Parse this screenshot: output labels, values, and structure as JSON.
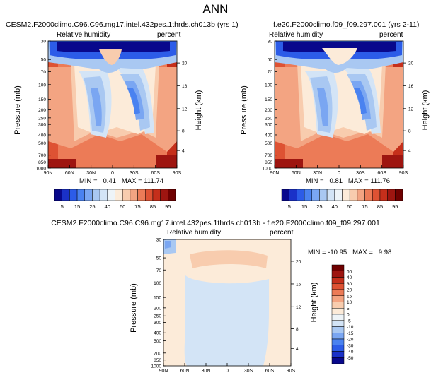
{
  "page_title": "ANN",
  "cmap_colors": [
    "#08088c",
    "#1a31c8",
    "#2c5ce8",
    "#4a82f0",
    "#7aa6f2",
    "#a9c8f2",
    "#d3e4f6",
    "#eef4f8",
    "#fcebd9",
    "#f8ccae",
    "#f3a482",
    "#ec7b57",
    "#de5233",
    "#c52f1b",
    "#9e1510",
    "#6f0000"
  ],
  "top_colorbar_labels": [
    "5",
    "15",
    "25",
    "40",
    "60",
    "75",
    "85",
    "95"
  ],
  "diff_colorbar_labels": [
    "50",
    "40",
    "30",
    "20",
    "15",
    "10",
    "5",
    "0",
    "-5",
    "-10",
    "-15",
    "-20",
    "-30",
    "-40",
    "-50"
  ],
  "chart_data": [
    {
      "type": "heatmap",
      "title": "CESM2.F2000climo.C96.C96.mg17.intel.432pes.1thrds.ch013b (yrs 1)",
      "subtitle_left": "Relative humidity",
      "subtitle_right": "percent",
      "ylabel": "Pressure (mb)",
      "ylabel_right": "Height (km)",
      "x_ticks": [
        "90N",
        "60N",
        "30N",
        "0",
        "30S",
        "60S",
        "90S"
      ],
      "y_ticks": [
        "30",
        "50",
        "70",
        "100",
        "150",
        "200",
        "250",
        "300",
        "400",
        "500",
        "700",
        "850",
        "1000"
      ],
      "y2_ticks": [
        "20",
        "16",
        "12",
        "8",
        "4"
      ],
      "stats": "MIN =   0.41   MAX = 111.74",
      "min": 0.41,
      "max": 111.74,
      "colorbar_ticks": [
        5,
        15,
        25,
        40,
        60,
        75,
        85,
        95
      ]
    },
    {
      "type": "heatmap",
      "title": "f.e20.F2000climo.f09_f09.297.001 (yrs 2-11)",
      "subtitle_left": "Relative humidity",
      "subtitle_right": "percent",
      "ylabel": "Pressure (mb)",
      "ylabel_right": "Height (km)",
      "x_ticks": [
        "90N",
        "60N",
        "30N",
        "0",
        "30S",
        "60S",
        "90S"
      ],
      "y_ticks": [
        "30",
        "50",
        "70",
        "100",
        "150",
        "200",
        "250",
        "300",
        "400",
        "500",
        "700",
        "850",
        "1000"
      ],
      "y2_ticks": [
        "20",
        "16",
        "12",
        "8",
        "4"
      ],
      "stats": "MIN =   0.81   MAX = 111.76",
      "min": 0.81,
      "max": 111.76,
      "colorbar_ticks": [
        5,
        15,
        25,
        40,
        60,
        75,
        85,
        95
      ]
    },
    {
      "type": "heatmap",
      "title": "CESM2.F2000climo.C96.C96.mg17.intel.432pes.1thrds.ch013b - f.e20.F2000climo.f09_f09.297.001",
      "subtitle_left": "Relative humidity",
      "subtitle_right": "percent",
      "ylabel": "Pressure (mb)",
      "ylabel_right": "Height (km)",
      "x_ticks": [
        "90N",
        "60N",
        "30N",
        "0",
        "30S",
        "60S",
        "90S"
      ],
      "y_ticks": [
        "30",
        "50",
        "70",
        "100",
        "150",
        "200",
        "250",
        "300",
        "400",
        "500",
        "700",
        "850",
        "1000"
      ],
      "y2_ticks": [
        "20",
        "16",
        "12",
        "8",
        "4"
      ],
      "stats": "MIN = -10.95   MAX =   9.98",
      "min": -10.95,
      "max": 9.98,
      "colorbar_ticks": [
        50,
        40,
        30,
        20,
        15,
        10,
        5,
        0,
        -5,
        -10,
        -15,
        -20,
        -30,
        -40,
        -50
      ]
    }
  ]
}
